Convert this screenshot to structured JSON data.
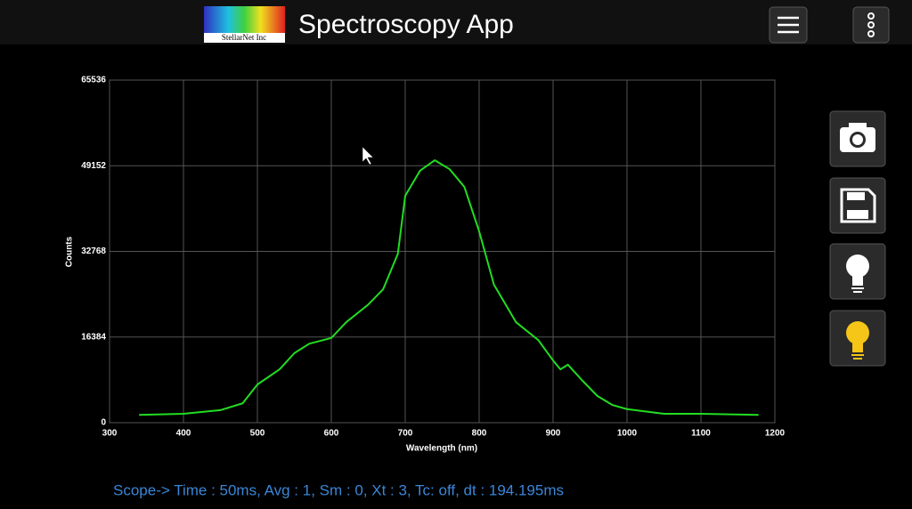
{
  "app": {
    "title": "Spectroscopy App",
    "logo_text": "StellarNet Inc"
  },
  "status": "Scope-> Time : 50ms,  Avg : 1,  Sm : 0,  Xt : 3, Tc: off,  dt : 194.195ms",
  "chart_data": {
    "type": "line",
    "x_label": "Wavelength (nm)",
    "y_label": "Counts",
    "x": [
      340,
      400,
      450,
      480,
      500,
      530,
      550,
      570,
      600,
      620,
      650,
      670,
      690,
      700,
      720,
      740,
      760,
      780,
      800,
      820,
      850,
      880,
      900,
      910,
      920,
      940,
      960,
      980,
      1000,
      1050,
      1100,
      1178
    ],
    "series": [
      {
        "color": "#22dd22",
        "values": [
          1500,
          1700,
          2400,
          3700,
          7300,
          10200,
          13300,
          15100,
          16200,
          19200,
          22600,
          25500,
          32300,
          43400,
          48200,
          50200,
          48500,
          45100,
          36600,
          26400,
          19200,
          15800,
          11900,
          10200,
          11100,
          8000,
          5100,
          3400,
          2600,
          1700,
          1700,
          1500
        ]
      }
    ],
    "xlim": [
      300,
      1200
    ],
    "xticks": [
      300,
      400,
      500,
      600,
      700,
      800,
      900,
      1000,
      1100,
      1200
    ],
    "ylim": [
      0,
      65536
    ],
    "yticks": [
      0,
      16384,
      32768,
      49152,
      65536
    ],
    "grid": true
  }
}
